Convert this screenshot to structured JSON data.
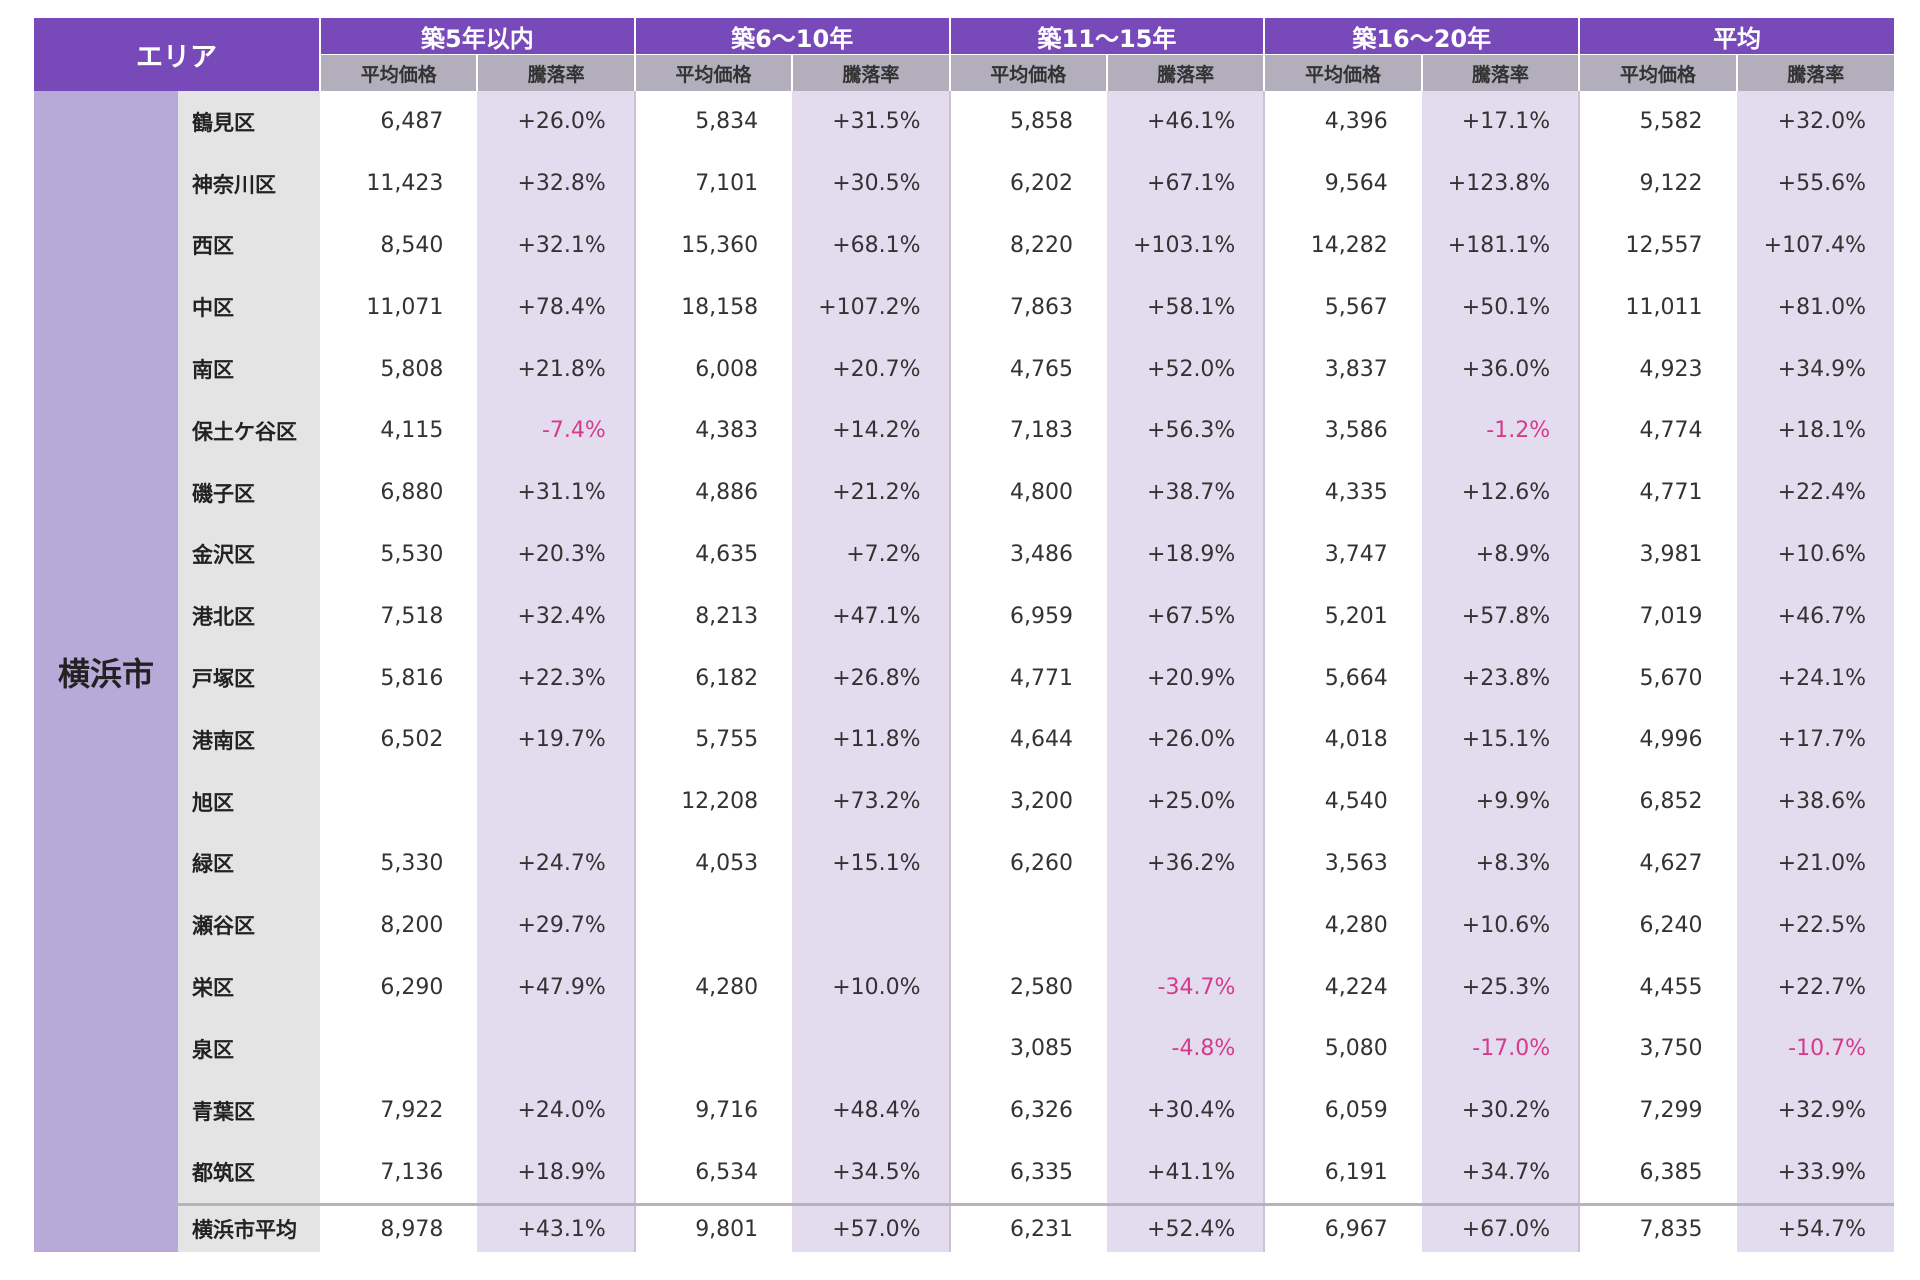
{
  "header": {
    "area": "エリア",
    "groups": [
      "築5年以内",
      "築6～10年",
      "築11～15年",
      "築16～20年",
      "平均"
    ],
    "price_label": "平均価格",
    "rate_label": "騰落率"
  },
  "city": "横浜市",
  "colors": {
    "header": "#7849b8",
    "subheader": "#b2aebc",
    "city": "#b9a9d9",
    "ward": "#e4e4e4",
    "rate_bg": "#e2dcee",
    "negative": "#d63a8c"
  },
  "rows": [
    {
      "ward": "鶴見区",
      "c": [
        [
          "6,487",
          "+26.0%"
        ],
        [
          "5,834",
          "+31.5%"
        ],
        [
          "5,858",
          "+46.1%"
        ],
        [
          "4,396",
          "+17.1%"
        ],
        [
          "5,582",
          "+32.0%"
        ]
      ]
    },
    {
      "ward": "神奈川区",
      "c": [
        [
          "11,423",
          "+32.8%"
        ],
        [
          "7,101",
          "+30.5%"
        ],
        [
          "6,202",
          "+67.1%"
        ],
        [
          "9,564",
          "+123.8%"
        ],
        [
          "9,122",
          "+55.6%"
        ]
      ]
    },
    {
      "ward": "西区",
      "c": [
        [
          "8,540",
          "+32.1%"
        ],
        [
          "15,360",
          "+68.1%"
        ],
        [
          "8,220",
          "+103.1%"
        ],
        [
          "14,282",
          "+181.1%"
        ],
        [
          "12,557",
          "+107.4%"
        ]
      ]
    },
    {
      "ward": "中区",
      "c": [
        [
          "11,071",
          "+78.4%"
        ],
        [
          "18,158",
          "+107.2%"
        ],
        [
          "7,863",
          "+58.1%"
        ],
        [
          "5,567",
          "+50.1%"
        ],
        [
          "11,011",
          "+81.0%"
        ]
      ]
    },
    {
      "ward": "南区",
      "c": [
        [
          "5,808",
          "+21.8%"
        ],
        [
          "6,008",
          "+20.7%"
        ],
        [
          "4,765",
          "+52.0%"
        ],
        [
          "3,837",
          "+36.0%"
        ],
        [
          "4,923",
          "+34.9%"
        ]
      ]
    },
    {
      "ward": "保土ケ谷区",
      "c": [
        [
          "4,115",
          "-7.4%"
        ],
        [
          "4,383",
          "+14.2%"
        ],
        [
          "7,183",
          "+56.3%"
        ],
        [
          "3,586",
          "-1.2%"
        ],
        [
          "4,774",
          "+18.1%"
        ]
      ]
    },
    {
      "ward": "磯子区",
      "c": [
        [
          "6,880",
          "+31.1%"
        ],
        [
          "4,886",
          "+21.2%"
        ],
        [
          "4,800",
          "+38.7%"
        ],
        [
          "4,335",
          "+12.6%"
        ],
        [
          "4,771",
          "+22.4%"
        ]
      ]
    },
    {
      "ward": "金沢区",
      "c": [
        [
          "5,530",
          "+20.3%"
        ],
        [
          "4,635",
          "+7.2%"
        ],
        [
          "3,486",
          "+18.9%"
        ],
        [
          "3,747",
          "+8.9%"
        ],
        [
          "3,981",
          "+10.6%"
        ]
      ]
    },
    {
      "ward": "港北区",
      "c": [
        [
          "7,518",
          "+32.4%"
        ],
        [
          "8,213",
          "+47.1%"
        ],
        [
          "6,959",
          "+67.5%"
        ],
        [
          "5,201",
          "+57.8%"
        ],
        [
          "7,019",
          "+46.7%"
        ]
      ]
    },
    {
      "ward": "戸塚区",
      "c": [
        [
          "5,816",
          "+22.3%"
        ],
        [
          "6,182",
          "+26.8%"
        ],
        [
          "4,771",
          "+20.9%"
        ],
        [
          "5,664",
          "+23.8%"
        ],
        [
          "5,670",
          "+24.1%"
        ]
      ]
    },
    {
      "ward": "港南区",
      "c": [
        [
          "6,502",
          "+19.7%"
        ],
        [
          "5,755",
          "+11.8%"
        ],
        [
          "4,644",
          "+26.0%"
        ],
        [
          "4,018",
          "+15.1%"
        ],
        [
          "4,996",
          "+17.7%"
        ]
      ]
    },
    {
      "ward": "旭区",
      "c": [
        [
          "",
          ""
        ],
        [
          "12,208",
          "+73.2%"
        ],
        [
          "3,200",
          "+25.0%"
        ],
        [
          "4,540",
          "+9.9%"
        ],
        [
          "6,852",
          "+38.6%"
        ]
      ]
    },
    {
      "ward": "緑区",
      "c": [
        [
          "5,330",
          "+24.7%"
        ],
        [
          "4,053",
          "+15.1%"
        ],
        [
          "6,260",
          "+36.2%"
        ],
        [
          "3,563",
          "+8.3%"
        ],
        [
          "4,627",
          "+21.0%"
        ]
      ]
    },
    {
      "ward": "瀬谷区",
      "c": [
        [
          "8,200",
          "+29.7%"
        ],
        [
          "",
          ""
        ],
        [
          "",
          ""
        ],
        [
          "4,280",
          "+10.6%"
        ],
        [
          "6,240",
          "+22.5%"
        ]
      ]
    },
    {
      "ward": "栄区",
      "c": [
        [
          "6,290",
          "+47.9%"
        ],
        [
          "4,280",
          "+10.0%"
        ],
        [
          "2,580",
          "-34.7%"
        ],
        [
          "4,224",
          "+25.3%"
        ],
        [
          "4,455",
          "+22.7%"
        ]
      ]
    },
    {
      "ward": "泉区",
      "c": [
        [
          "",
          ""
        ],
        [
          "",
          ""
        ],
        [
          "3,085",
          "-4.8%"
        ],
        [
          "5,080",
          "-17.0%"
        ],
        [
          "3,750",
          "-10.7%"
        ]
      ]
    },
    {
      "ward": "青葉区",
      "c": [
        [
          "7,922",
          "+24.0%"
        ],
        [
          "9,716",
          "+48.4%"
        ],
        [
          "6,326",
          "+30.4%"
        ],
        [
          "6,059",
          "+30.2%"
        ],
        [
          "7,299",
          "+32.9%"
        ]
      ]
    },
    {
      "ward": "都筑区",
      "c": [
        [
          "7,136",
          "+18.9%"
        ],
        [
          "6,534",
          "+34.5%"
        ],
        [
          "6,335",
          "+41.1%"
        ],
        [
          "6,191",
          "+34.7%"
        ],
        [
          "6,385",
          "+33.9%"
        ]
      ]
    }
  ],
  "average": {
    "ward": "横浜市平均",
    "c": [
      [
        "8,978",
        "+43.1%"
      ],
      [
        "9,801",
        "+57.0%"
      ],
      [
        "6,231",
        "+52.4%"
      ],
      [
        "6,967",
        "+67.0%"
      ],
      [
        "7,835",
        "+54.7%"
      ]
    ]
  }
}
